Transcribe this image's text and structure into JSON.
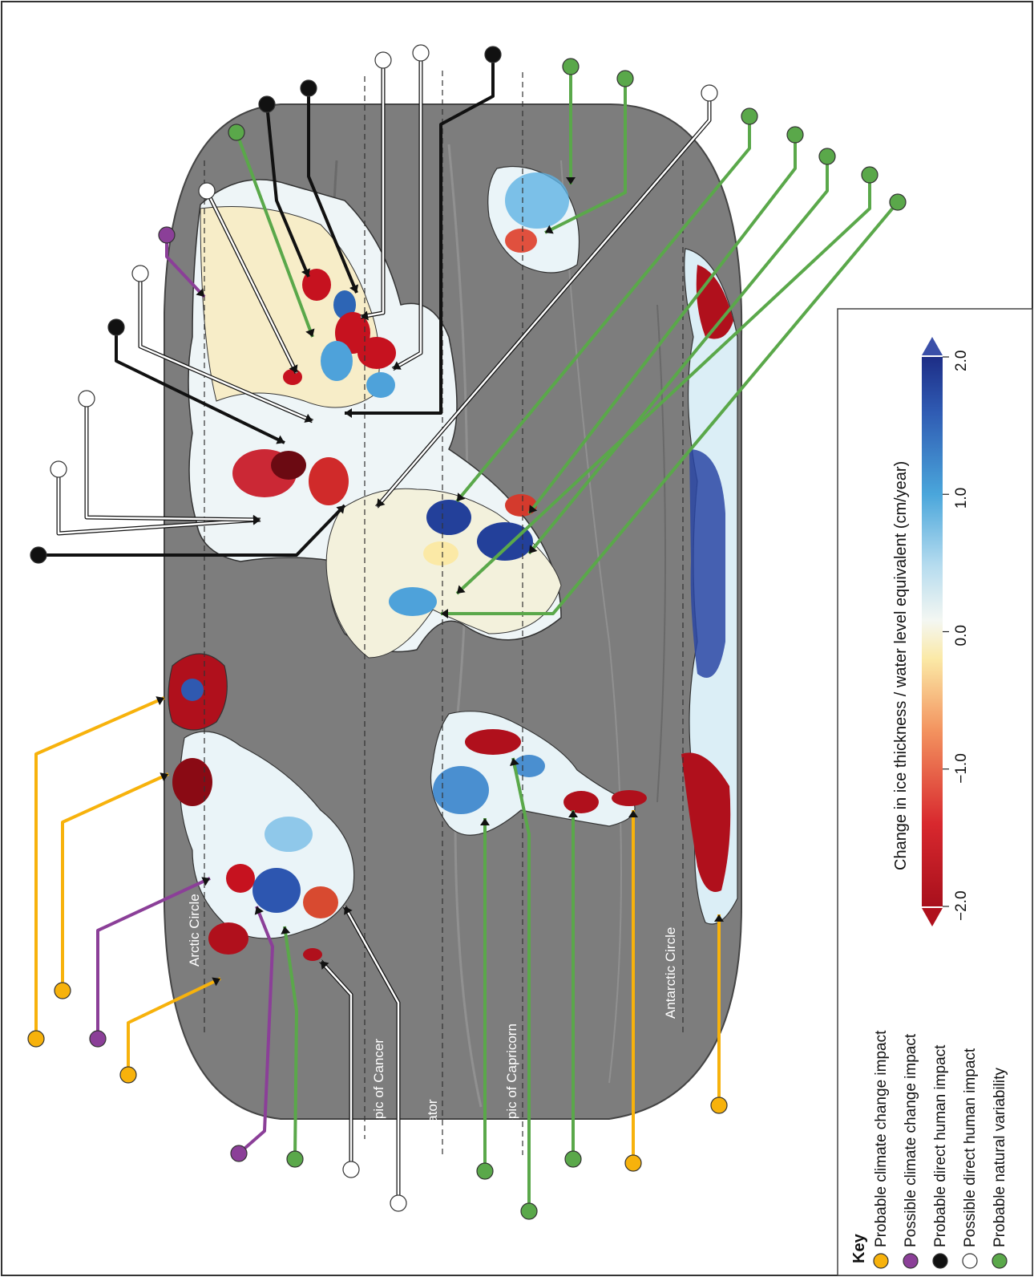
{
  "map": {
    "lines": {
      "arctic_circle": "Arctic Circle",
      "tropic_of_cancer": "Tropic of Cancer",
      "equator": "Equator",
      "tropic_of_capricorn": "Tropic of Capricorn",
      "antarctic_circle": "Antarctic Circle"
    },
    "colors": {
      "ocean": "#7a7a7a",
      "land_neutral": "#e9f3f6",
      "loss_strong": "#b0101c",
      "loss_mild": "#f08a62",
      "neutral_yellow": "#fbf0b0",
      "gain_mild": "#7cc3e6",
      "gain_strong": "#23409a"
    }
  },
  "colorbar": {
    "title": "Change in ice thickness / water level equivalent (cm/year)",
    "ticks": [
      "−2.0",
      "−1.0",
      "0.0",
      "1.0",
      "2.0"
    ],
    "low_color": "#b0101c",
    "high_color": "#3a4fa8"
  },
  "key": {
    "title": "Key",
    "items": [
      {
        "label": "Probable climate change impact",
        "color": "#f7b20c"
      },
      {
        "label": "Possible climate change impact",
        "color": "#8b3f98"
      },
      {
        "label": "Probable direct human impact",
        "color": "#111111"
      },
      {
        "label": "Possible direct human impact",
        "color": "#ffffff"
      },
      {
        "label": "Probable natural variability",
        "color": "#5aa84a"
      }
    ]
  }
}
